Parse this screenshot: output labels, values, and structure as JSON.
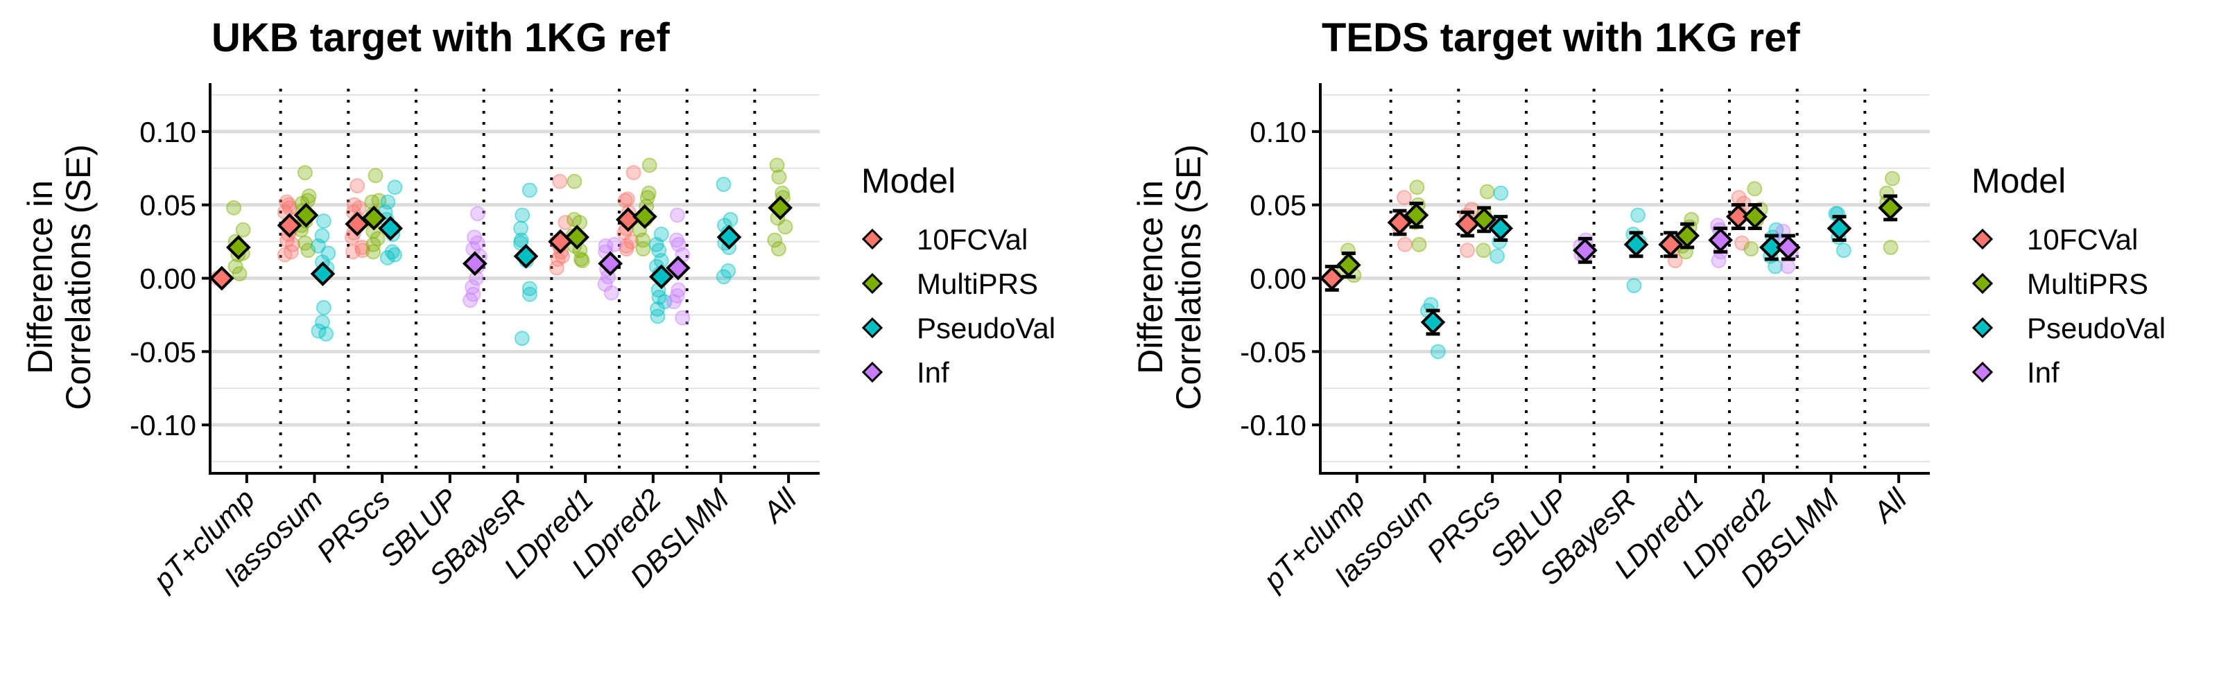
{
  "chart_data": [
    {
      "type": "scatter",
      "title": "UKB target with 1KG ref",
      "xlabel": "",
      "ylabel": "Difference in\nCorrelations (SE)",
      "ylim": [
        -0.133,
        0.133
      ],
      "yticks": [
        -0.1,
        -0.05,
        0.0,
        0.05,
        0.1
      ],
      "ytick_labels": [
        "-0.10",
        "-0.05",
        "0.00",
        "0.05",
        "0.10"
      ],
      "minor_grid": [
        -0.125,
        -0.075,
        -0.025,
        0.025,
        0.075,
        0.125
      ],
      "grid": true,
      "error_bars": false,
      "categories": [
        "pT+clump",
        "lassosum",
        "PRScs",
        "SBLUP",
        "SBayesR",
        "LDpred1",
        "LDpred2",
        "DBSLMM",
        "All"
      ],
      "legend": {
        "title": "Model",
        "position": "right",
        "entries": [
          "10FCVal",
          "MultiPRS",
          "PseudoVal",
          "Inf"
        ]
      },
      "series": [
        {
          "name": "10FCVal",
          "color": "#F8766D",
          "means": {
            "pT+clump": 0.0,
            "lassosum": 0.036,
            "PRScs": 0.037,
            "LDpred1": 0.025,
            "LDpred2": 0.04
          },
          "points": {
            "pT+clump": [
              0.0,
              0.0,
              0.0
            ],
            "lassosum": [
              0.052,
              0.05,
              0.048,
              0.045,
              0.04,
              0.033,
              0.03,
              0.026,
              0.023,
              0.018,
              0.016
            ],
            "PRScs": [
              0.063,
              0.05,
              0.048,
              0.045,
              0.04,
              0.036,
              0.031,
              0.028,
              0.021,
              0.019,
              0.018
            ],
            "LDpred1": [
              0.066,
              0.038,
              0.025,
              0.022,
              0.018,
              0.015,
              0.013,
              0.007
            ],
            "LDpred2": [
              0.072,
              0.054,
              0.053,
              0.045,
              0.034,
              0.031,
              0.025,
              0.022,
              0.02
            ]
          }
        },
        {
          "name": "MultiPRS",
          "color": "#7CAE00",
          "means": {
            "pT+clump": 0.021,
            "lassosum": 0.043,
            "PRScs": 0.041,
            "LDpred1": 0.028,
            "LDpred2": 0.042,
            "All": 0.048
          },
          "points": {
            "pT+clump": [
              0.048,
              0.033,
              0.025,
              0.017,
              0.016,
              0.008,
              0.003
            ],
            "lassosum": [
              0.072,
              0.056,
              0.053,
              0.051,
              0.046,
              0.039,
              0.036,
              0.033,
              0.024,
              0.019
            ],
            "PRScs": [
              0.07,
              0.053,
              0.052,
              0.044,
              0.039,
              0.032,
              0.027,
              0.023,
              0.018
            ],
            "LDpred1": [
              0.066,
              0.04,
              0.038,
              0.029,
              0.022,
              0.019,
              0.013,
              0.012
            ],
            "LDpred2": [
              0.077,
              0.058,
              0.055,
              0.049,
              0.04,
              0.033,
              0.026,
              0.02
            ],
            "All": [
              0.077,
              0.069,
              0.058,
              0.055,
              0.041,
              0.035,
              0.026,
              0.02
            ]
          }
        },
        {
          "name": "PseudoVal",
          "color": "#00BFC4",
          "means": {
            "lassosum": 0.003,
            "PRScs": 0.034,
            "SBayesR": 0.015,
            "LDpred2": 0.001,
            "DBSLMM": 0.028
          },
          "points": {
            "lassosum": [
              0.039,
              0.029,
              0.022,
              0.017,
              0.011,
              0.007,
              -0.02,
              -0.03,
              -0.036,
              -0.038
            ],
            "PRScs": [
              0.062,
              0.052,
              0.045,
              0.04,
              0.034,
              0.03,
              0.018,
              0.016,
              0.014
            ],
            "SBayesR": [
              0.06,
              0.043,
              0.034,
              0.026,
              0.024,
              0.012,
              -0.007,
              -0.011,
              -0.041
            ],
            "LDpred2": [
              0.03,
              0.023,
              0.019,
              0.012,
              0.008,
              0.003,
              -0.008,
              -0.013,
              -0.016,
              -0.021,
              -0.026
            ],
            "DBSLMM": [
              0.064,
              0.04,
              0.036,
              0.031,
              0.024,
              0.021,
              0.005,
              0.001
            ]
          }
        },
        {
          "name": "Inf",
          "color": "#C77CFF",
          "means": {
            "SBLUP": 0.01,
            "LDpred1": 0.01,
            "LDpred2": 0.007
          },
          "points": {
            "SBLUP": [
              0.044,
              0.028,
              0.024,
              0.02,
              0.015,
              0.008,
              0.0,
              -0.006,
              -0.011,
              -0.015
            ],
            "LDpred1": [
              0.023,
              0.022,
              0.018,
              0.006,
              0.001,
              -0.004,
              -0.01
            ],
            "LDpred2": [
              0.043,
              0.026,
              0.023,
              0.016,
              -0.008,
              -0.012,
              -0.016,
              -0.027
            ]
          }
        }
      ]
    },
    {
      "type": "scatter",
      "title": "TEDS target with 1KG ref",
      "xlabel": "",
      "ylabel": "Difference in\nCorrelations (SE)",
      "ylim": [
        -0.133,
        0.133
      ],
      "yticks": [
        -0.1,
        -0.05,
        0.0,
        0.05,
        0.1
      ],
      "ytick_labels": [
        "-0.10",
        "-0.05",
        "0.00",
        "0.05",
        "0.10"
      ],
      "minor_grid": [
        -0.125,
        -0.075,
        -0.025,
        0.025,
        0.075,
        0.125
      ],
      "grid": true,
      "error_bars": true,
      "categories": [
        "pT+clump",
        "lassosum",
        "PRScs",
        "SBLUP",
        "SBayesR",
        "LDpred1",
        "LDpred2",
        "DBSLMM",
        "All"
      ],
      "legend": {
        "title": "Model",
        "position": "right",
        "entries": [
          "10FCVal",
          "MultiPRS",
          "PseudoVal",
          "Inf"
        ]
      },
      "series": [
        {
          "name": "10FCVal",
          "color": "#F8766D",
          "means": {
            "pT+clump": 0.0,
            "lassosum": 0.038,
            "PRScs": 0.037,
            "LDpred1": 0.023,
            "LDpred2": 0.042
          },
          "se": {
            "pT+clump": 0.008,
            "lassosum": 0.008,
            "PRScs": 0.008,
            "LDpred1": 0.008,
            "LDpred2": 0.008
          },
          "points": {
            "pT+clump": [
              0.001,
              0.0
            ],
            "lassosum": [
              0.055,
              0.042,
              0.035,
              0.023
            ],
            "PRScs": [
              0.047,
              0.043,
              0.019
            ],
            "LDpred1": [
              0.026,
              0.021,
              0.012
            ],
            "LDpred2": [
              0.055,
              0.051,
              0.044,
              0.024
            ]
          }
        },
        {
          "name": "MultiPRS",
          "color": "#7CAE00",
          "means": {
            "pT+clump": 0.009,
            "lassosum": 0.043,
            "PRScs": 0.04,
            "LDpred1": 0.029,
            "LDpred2": 0.042,
            "All": 0.048
          },
          "se": {
            "pT+clump": 0.008,
            "lassosum": 0.008,
            "PRScs": 0.008,
            "LDpred1": 0.008,
            "LDpred2": 0.008,
            "All": 0.008
          },
          "points": {
            "pT+clump": [
              0.019,
              0.006,
              0.002
            ],
            "lassosum": [
              0.062,
              0.05,
              0.038,
              0.023
            ],
            "PRScs": [
              0.059,
              0.044,
              0.019
            ],
            "LDpred1": [
              0.04,
              0.035,
              0.022,
              0.018
            ],
            "LDpred2": [
              0.061,
              0.047,
              0.04,
              0.02
            ],
            "All": [
              0.068,
              0.058,
              0.052,
              0.021
            ]
          }
        },
        {
          "name": "PseudoVal",
          "color": "#00BFC4",
          "means": {
            "lassosum": -0.03,
            "PRScs": 0.034,
            "SBayesR": 0.023,
            "LDpred2": 0.021,
            "DBSLMM": 0.034
          },
          "se": {
            "lassosum": 0.008,
            "PRScs": 0.008,
            "SBayesR": 0.008,
            "LDpred2": 0.008,
            "DBSLMM": 0.008
          },
          "points": {
            "lassosum": [
              -0.018,
              -0.022,
              -0.05
            ],
            "PRScs": [
              0.058,
              0.038,
              0.025,
              0.015
            ],
            "SBayesR": [
              0.043,
              0.03,
              0.025,
              -0.005
            ],
            "LDpred2": [
              0.033,
              0.028,
              0.015,
              0.008
            ],
            "DBSLMM": [
              0.044,
              0.044,
              0.028,
              0.019
            ]
          }
        },
        {
          "name": "Inf",
          "color": "#C77CFF",
          "means": {
            "SBLUP": 0.019,
            "LDpred1": 0.026,
            "LDpred2": 0.021
          },
          "se": {
            "SBLUP": 0.008,
            "LDpred1": 0.008,
            "LDpred2": 0.008
          },
          "points": {
            "SBLUP": [
              0.026,
              0.022,
              0.016,
              0.015
            ],
            "LDpred1": [
              0.036,
              0.033,
              0.018,
              0.012
            ],
            "LDpred2": [
              0.032,
              0.025,
              0.017,
              0.008
            ]
          }
        }
      ]
    }
  ]
}
